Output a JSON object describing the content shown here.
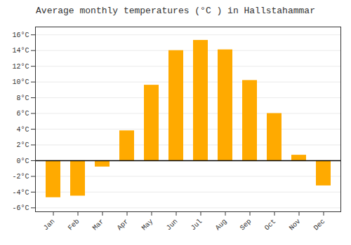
{
  "chart_data": {
    "type": "bar",
    "title": "Average monthly temperatures (°C ) in Hallstahammar",
    "categories": [
      "Jan",
      "Feb",
      "Mar",
      "Apr",
      "May",
      "Jun",
      "Jul",
      "Aug",
      "Sep",
      "Oct",
      "Nov",
      "Dec"
    ],
    "values": [
      -4.7,
      -4.5,
      -0.8,
      3.8,
      9.6,
      14.0,
      15.3,
      14.1,
      10.2,
      6.0,
      0.7,
      -3.2
    ],
    "color": "#FFAA00",
    "ylim": [
      -6.5,
      17
    ],
    "yticks": [
      {
        "value": -6,
        "label": "-6°C"
      },
      {
        "value": -4,
        "label": "-4°C"
      },
      {
        "value": -2,
        "label": "-2°C"
      },
      {
        "value": 0,
        "label": "0°C"
      },
      {
        "value": 2,
        "label": "2°C"
      },
      {
        "value": 4,
        "label": "4°C"
      },
      {
        "value": 6,
        "label": "6°C"
      },
      {
        "value": 8,
        "label": "8°C"
      },
      {
        "value": 10,
        "label": "10°C"
      },
      {
        "value": 12,
        "label": "12°C"
      },
      {
        "value": 14,
        "label": "14°C"
      },
      {
        "value": 16,
        "label": "16°C"
      }
    ],
    "grid": true
  }
}
